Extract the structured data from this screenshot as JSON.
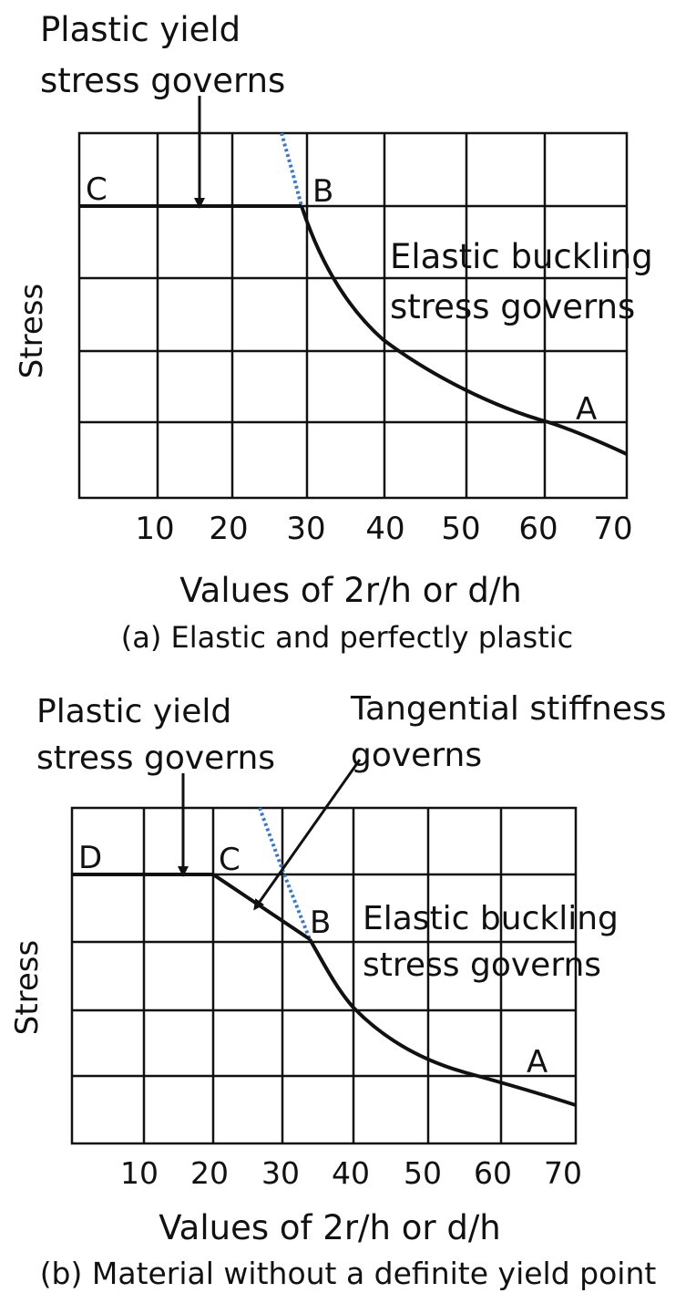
{
  "panels": [
    {
      "caption": "(a) Elastic and perfectly plastic",
      "ylabel": "Stress",
      "xlabel": "Values of 2r/h or d/h",
      "xticks": [
        "10",
        "20",
        "30",
        "40",
        "50",
        "60",
        "70"
      ],
      "point_labels": {
        "c": "C",
        "b": "B",
        "a": "A"
      },
      "annotations": {
        "plastic": [
          "Plastic yield",
          "stress governs"
        ],
        "elastic": [
          "Elastic buckling",
          "stress governs"
        ]
      }
    },
    {
      "caption": "(b) Material without a definite yield point",
      "ylabel": "Stress",
      "xlabel": "Values of 2r/h or d/h",
      "xticks": [
        "10",
        "20",
        "30",
        "40",
        "50",
        "60",
        "70"
      ],
      "point_labels": {
        "d": "D",
        "c": "C",
        "b": "B",
        "a": "A"
      },
      "annotations": {
        "plastic": [
          "Plastic yield",
          "stress governs"
        ],
        "tangential": [
          "Tangential stiffness",
          "governs"
        ],
        "elastic": [
          "Elastic buckling",
          "stress governs"
        ]
      }
    }
  ],
  "colors": {
    "curve": "#111111",
    "grid": "#111111",
    "euler_extension": "#3a78c9"
  }
}
